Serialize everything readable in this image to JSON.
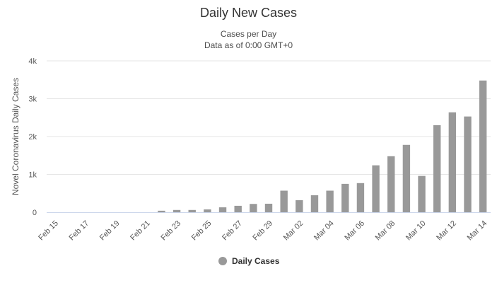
{
  "chart_data": {
    "type": "bar",
    "title": "Daily New Cases",
    "subtitle_lines": [
      "Cases per Day",
      "Data as of 0:00 GMT+0"
    ],
    "ylabel": "Novel Coronavirus Daily Cases",
    "xlabel": "",
    "ylim": [
      0,
      4000
    ],
    "yticks": [
      0,
      1000,
      2000,
      3000,
      4000
    ],
    "ytick_labels": [
      "0",
      "1k",
      "2k",
      "3k",
      "4k"
    ],
    "grid": true,
    "legend_position": "bottom-center",
    "bar_color": "#999999",
    "categories": [
      "Feb 15",
      "Feb 16",
      "Feb 17",
      "Feb 18",
      "Feb 19",
      "Feb 20",
      "Feb 21",
      "Feb 22",
      "Feb 23",
      "Feb 24",
      "Feb 25",
      "Feb 26",
      "Feb 27",
      "Feb 28",
      "Feb 29",
      "Mar 01",
      "Mar 02",
      "Mar 03",
      "Mar 04",
      "Mar 05",
      "Mar 06",
      "Mar 07",
      "Mar 08",
      "Mar 09",
      "Mar 10",
      "Mar 11",
      "Mar 12",
      "Mar 13",
      "Mar 14"
    ],
    "xtick_labels": [
      "Feb 15",
      "Feb 17",
      "Feb 19",
      "Feb 21",
      "Feb 23",
      "Feb 25",
      "Feb 27",
      "Feb 29",
      "Mar 02",
      "Mar 04",
      "Mar 06",
      "Mar 08",
      "Mar 10",
      "Mar 12",
      "Mar 14"
    ],
    "series": [
      {
        "name": "Daily Cases",
        "values": [
          0,
          0,
          0,
          0,
          0,
          0,
          0,
          40,
          60,
          60,
          75,
          130,
          170,
          220,
          225,
          570,
          320,
          450,
          570,
          750,
          770,
          1240,
          1480,
          1780,
          960,
          2300,
          2640,
          2530,
          3480
        ]
      }
    ]
  }
}
